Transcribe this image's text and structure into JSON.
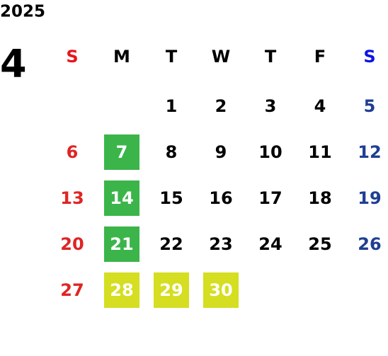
{
  "year": "2025",
  "month": "4",
  "weekdays": [
    "S",
    "M",
    "T",
    "W",
    "T",
    "F",
    "S"
  ],
  "header_colors": [
    "#e8141c",
    "#000000",
    "#000000",
    "#000000",
    "#000000",
    "#000000",
    "#0a14e6"
  ],
  "day_colors": [
    "#e02424",
    "#000000",
    "#000000",
    "#000000",
    "#000000",
    "#000000",
    "#1f3f91"
  ],
  "weeks": [
    [
      null,
      null,
      1,
      2,
      3,
      4,
      5
    ],
    [
      6,
      {
        "day": 7,
        "fill": "#3bb54a"
      },
      8,
      9,
      10,
      11,
      12
    ],
    [
      13,
      {
        "day": 14,
        "fill": "#3bb54a"
      },
      15,
      16,
      17,
      18,
      19
    ],
    [
      20,
      {
        "day": 21,
        "fill": "#3bb54a"
      },
      22,
      23,
      24,
      25,
      26
    ],
    [
      27,
      {
        "day": 28,
        "fill": "#d5de21"
      },
      {
        "day": 29,
        "fill": "#d5de21"
      },
      {
        "day": 30,
        "fill": "#d5de21"
      },
      null,
      null,
      null
    ]
  ]
}
